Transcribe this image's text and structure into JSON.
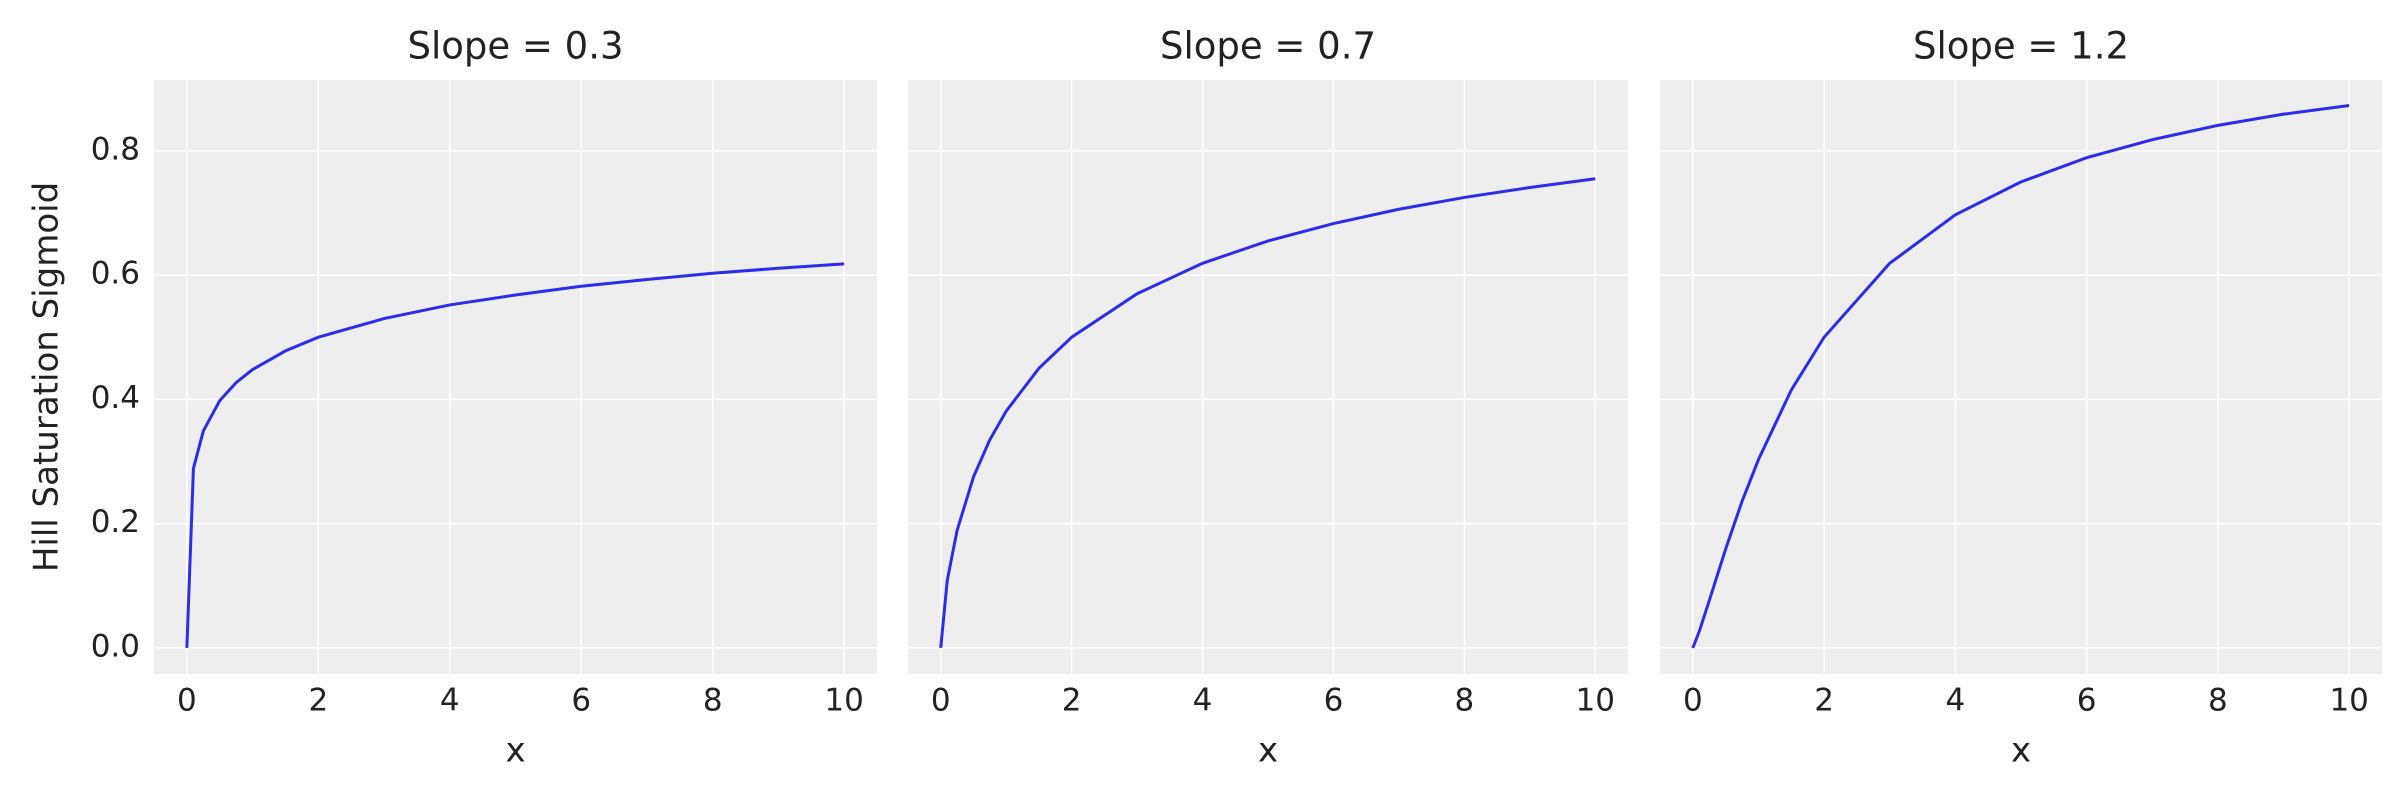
{
  "chart_data": [
    {
      "type": "line",
      "title": "Slope = 0.3",
      "xlabel": "x",
      "ylabel": "Hill Saturation Sigmoid",
      "x": [
        0,
        0.1,
        0.25,
        0.5,
        0.75,
        1,
        1.5,
        2,
        3,
        4,
        5,
        6,
        7,
        8,
        9,
        10
      ],
      "series": [
        {
          "color": "#2a2eec",
          "values": [
            0,
            0.289,
            0.349,
            0.398,
            0.427,
            0.448,
            0.478,
            0.5,
            0.53,
            0.552,
            0.568,
            0.582,
            0.593,
            0.603,
            0.611,
            0.618
          ]
        }
      ],
      "xlim": [
        -0.5,
        10.5
      ],
      "ylim": [
        -0.042,
        0.914
      ],
      "xticks": [
        0,
        2,
        4,
        6,
        8,
        10
      ],
      "yticks": [
        {
          "value": 0,
          "label": "0.0"
        },
        0.2,
        0.4,
        0.6,
        0.8
      ],
      "grid": true
    },
    {
      "type": "line",
      "title": "Slope = 0.7",
      "xlabel": "x",
      "x": [
        0,
        0.1,
        0.25,
        0.5,
        0.75,
        1,
        1.5,
        2,
        3,
        4,
        5,
        6,
        7,
        8,
        9,
        10
      ],
      "series": [
        {
          "color": "#2a2eec",
          "values": [
            0,
            0.109,
            0.189,
            0.275,
            0.335,
            0.381,
            0.45,
            0.5,
            0.57,
            0.619,
            0.655,
            0.683,
            0.706,
            0.725,
            0.741,
            0.755
          ]
        }
      ],
      "xlim": [
        -0.5,
        10.5
      ],
      "ylim": [
        -0.042,
        0.914
      ],
      "xticks": [
        0,
        2,
        4,
        6,
        8,
        10
      ],
      "yticks": [
        0,
        0.2,
        0.4,
        0.6,
        0.8
      ],
      "grid": true
    },
    {
      "type": "line",
      "title": "Slope = 1.2",
      "xlabel": "x",
      "x": [
        0,
        0.1,
        0.25,
        0.5,
        0.75,
        1,
        1.5,
        2,
        3,
        4,
        5,
        6,
        7,
        8,
        9,
        10
      ],
      "series": [
        {
          "color": "#2a2eec",
          "values": [
            0,
            0.027,
            0.076,
            0.159,
            0.236,
            0.303,
            0.415,
            0.5,
            0.619,
            0.697,
            0.75,
            0.789,
            0.818,
            0.841,
            0.859,
            0.873
          ]
        }
      ],
      "xlim": [
        -0.5,
        10.5
      ],
      "ylim": [
        -0.042,
        0.914
      ],
      "xticks": [
        0,
        2,
        4,
        6,
        8,
        10
      ],
      "yticks": [
        0,
        0.2,
        0.4,
        0.6,
        0.8
      ],
      "grid": true
    }
  ]
}
